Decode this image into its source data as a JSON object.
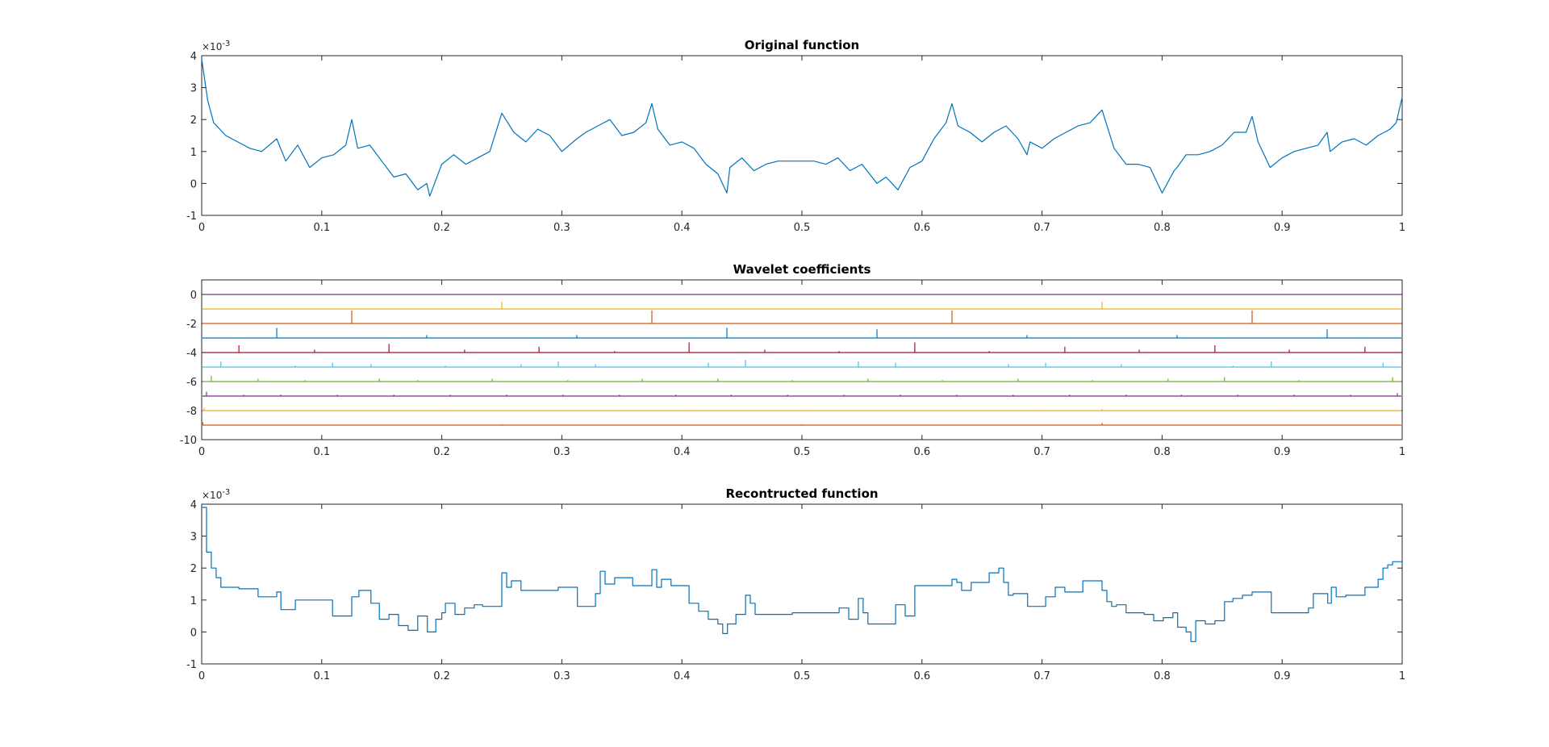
{
  "figure_window": {
    "background": "#ffffff"
  },
  "chart_data": [
    {
      "type": "line",
      "title": "Original function",
      "xlabel": "",
      "ylabel": "",
      "xlim": [
        0,
        1
      ],
      "ylim": [
        -1,
        4
      ],
      "y_multiplier": "×10",
      "y_multiplier_exp": "-3",
      "xticks": [
        "0",
        "0.1",
        "0.2",
        "0.3",
        "0.4",
        "0.5",
        "0.6",
        "0.7",
        "0.8",
        "0.9",
        "1"
      ],
      "yticks": [
        "-1",
        "0",
        "1",
        "2",
        "3",
        "4"
      ],
      "grid": false,
      "color": "#0072bd",
      "series": [
        {
          "x": [
            0,
            0.005,
            0.01,
            0.02,
            0.03,
            0.04,
            0.05,
            0.0625,
            0.07,
            0.08,
            0.09,
            0.1,
            0.11,
            0.12,
            0.125,
            0.13,
            0.14,
            0.15,
            0.16,
            0.17,
            0.18,
            0.1875,
            0.19,
            0.2,
            0.21,
            0.22,
            0.23,
            0.24,
            0.25,
            0.26,
            0.27,
            0.28,
            0.29,
            0.3,
            0.3125,
            0.32,
            0.33,
            0.34,
            0.35,
            0.36,
            0.37,
            0.375,
            0.38,
            0.39,
            0.4,
            0.41,
            0.42,
            0.43,
            0.4375,
            0.44,
            0.45,
            0.46,
            0.47,
            0.48,
            0.49,
            0.5,
            0.51,
            0.52,
            0.53,
            0.54,
            0.55,
            0.5625,
            0.57,
            0.58,
            0.59,
            0.6,
            0.61,
            0.62,
            0.625,
            0.63,
            0.64,
            0.65,
            0.66,
            0.67,
            0.68,
            0.6875,
            0.69,
            0.7,
            0.71,
            0.72,
            0.73,
            0.74,
            0.75,
            0.76,
            0.77,
            0.78,
            0.79,
            0.8,
            0.81,
            0.8125,
            0.82,
            0.83,
            0.84,
            0.85,
            0.86,
            0.87,
            0.875,
            0.88,
            0.89,
            0.9,
            0.91,
            0.92,
            0.93,
            0.9375,
            0.94,
            0.95,
            0.96,
            0.97,
            0.98,
            0.99,
            0.995,
            1
          ],
          "y": [
            3.9,
            2.6,
            1.9,
            1.5,
            1.3,
            1.1,
            1.0,
            1.4,
            0.7,
            1.2,
            0.5,
            0.8,
            0.9,
            1.2,
            2.0,
            1.1,
            1.2,
            0.7,
            0.2,
            0.3,
            -0.2,
            0.0,
            -0.4,
            0.6,
            0.9,
            0.6,
            0.8,
            1.0,
            2.2,
            1.6,
            1.3,
            1.7,
            1.5,
            1.0,
            1.4,
            1.6,
            1.8,
            2.0,
            1.5,
            1.6,
            1.9,
            2.5,
            1.7,
            1.2,
            1.3,
            1.1,
            0.6,
            0.3,
            -0.3,
            0.5,
            0.8,
            0.4,
            0.6,
            0.7,
            0.7,
            0.7,
            0.7,
            0.6,
            0.8,
            0.4,
            0.6,
            0.0,
            0.2,
            -0.2,
            0.5,
            0.7,
            1.4,
            1.9,
            2.5,
            1.8,
            1.6,
            1.3,
            1.6,
            1.8,
            1.4,
            0.9,
            1.3,
            1.1,
            1.4,
            1.6,
            1.8,
            1.9,
            2.3,
            1.1,
            0.6,
            0.6,
            0.5,
            -0.3,
            0.4,
            0.5,
            0.9,
            0.9,
            1.0,
            1.2,
            1.6,
            1.6,
            2.1,
            1.3,
            0.5,
            0.8,
            1.0,
            1.1,
            1.2,
            1.6,
            1.0,
            1.3,
            1.4,
            1.2,
            1.5,
            1.7,
            1.9,
            2.7
          ]
        }
      ]
    },
    {
      "type": "line",
      "title": "Wavelet coefficients",
      "xlabel": "",
      "ylabel": "",
      "xlim": [
        0,
        1
      ],
      "ylim": [
        -10,
        1
      ],
      "xticks": [
        "0",
        "0.1",
        "0.2",
        "0.3",
        "0.4",
        "0.5",
        "0.6",
        "0.7",
        "0.8",
        "0.9",
        "1"
      ],
      "yticks": [
        "-10",
        "-8",
        "-6",
        "-4",
        "-2",
        "0"
      ],
      "grid": false,
      "levels": [
        {
          "baseline": 0,
          "color": "#7e2f8e",
          "spikes": []
        },
        {
          "baseline": -1,
          "color": "#edb120",
          "spikes": [
            {
              "x": 0.25,
              "h": 0.5
            },
            {
              "x": 0.75,
              "h": 0.5
            }
          ]
        },
        {
          "baseline": -2,
          "color": "#d95319",
          "spikes": [
            {
              "x": 0.125,
              "h": 0.9
            },
            {
              "x": 0.375,
              "h": 0.9
            },
            {
              "x": 0.625,
              "h": 0.9
            },
            {
              "x": 0.875,
              "h": 0.9
            }
          ]
        },
        {
          "baseline": -3,
          "color": "#0072bd",
          "spikes": [
            {
              "x": 0.0625,
              "h": 0.7
            },
            {
              "x": 0.1875,
              "h": 0.2
            },
            {
              "x": 0.3125,
              "h": 0.2
            },
            {
              "x": 0.4375,
              "h": 0.7
            },
            {
              "x": 0.5625,
              "h": 0.6
            },
            {
              "x": 0.6875,
              "h": 0.2
            },
            {
              "x": 0.8125,
              "h": 0.2
            },
            {
              "x": 0.9375,
              "h": 0.6
            }
          ]
        },
        {
          "baseline": -4,
          "color": "#a2142f",
          "spikes": [
            {
              "x": 0.031,
              "h": 0.5
            },
            {
              "x": 0.094,
              "h": 0.2
            },
            {
              "x": 0.156,
              "h": 0.6
            },
            {
              "x": 0.219,
              "h": 0.2
            },
            {
              "x": 0.281,
              "h": 0.4
            },
            {
              "x": 0.344,
              "h": 0.1
            },
            {
              "x": 0.406,
              "h": 0.7
            },
            {
              "x": 0.469,
              "h": 0.2
            },
            {
              "x": 0.531,
              "h": 0.1
            },
            {
              "x": 0.594,
              "h": 0.7
            },
            {
              "x": 0.656,
              "h": 0.1
            },
            {
              "x": 0.719,
              "h": 0.4
            },
            {
              "x": 0.781,
              "h": 0.2
            },
            {
              "x": 0.844,
              "h": 0.5
            },
            {
              "x": 0.906,
              "h": 0.2
            },
            {
              "x": 0.969,
              "h": 0.4
            }
          ]
        },
        {
          "baseline": -5,
          "color": "#4dbeee",
          "spikes": [
            {
              "x": 0.016,
              "h": 0.4
            },
            {
              "x": 0.078,
              "h": 0.1
            },
            {
              "x": 0.109,
              "h": 0.3
            },
            {
              "x": 0.141,
              "h": 0.2
            },
            {
              "x": 0.203,
              "h": 0.1
            },
            {
              "x": 0.266,
              "h": 0.2
            },
            {
              "x": 0.297,
              "h": 0.4
            },
            {
              "x": 0.328,
              "h": 0.2
            },
            {
              "x": 0.422,
              "h": 0.3
            },
            {
              "x": 0.453,
              "h": 0.5
            },
            {
              "x": 0.547,
              "h": 0.4
            },
            {
              "x": 0.578,
              "h": 0.3
            },
            {
              "x": 0.672,
              "h": 0.2
            },
            {
              "x": 0.703,
              "h": 0.3
            },
            {
              "x": 0.766,
              "h": 0.2
            },
            {
              "x": 0.859,
              "h": 0.1
            },
            {
              "x": 0.891,
              "h": 0.4
            },
            {
              "x": 0.984,
              "h": 0.3
            }
          ]
        },
        {
          "baseline": -6,
          "color": "#77ac30",
          "spikes": [
            {
              "x": 0.008,
              "h": 0.4
            },
            {
              "x": 0.047,
              "h": 0.2
            },
            {
              "x": 0.086,
              "h": 0.1
            },
            {
              "x": 0.148,
              "h": 0.2
            },
            {
              "x": 0.18,
              "h": 0.1
            },
            {
              "x": 0.242,
              "h": 0.2
            },
            {
              "x": 0.305,
              "h": 0.1
            },
            {
              "x": 0.367,
              "h": 0.2
            },
            {
              "x": 0.43,
              "h": 0.2
            },
            {
              "x": 0.492,
              "h": 0.1
            },
            {
              "x": 0.555,
              "h": 0.2
            },
            {
              "x": 0.617,
              "h": 0.1
            },
            {
              "x": 0.68,
              "h": 0.2
            },
            {
              "x": 0.742,
              "h": 0.1
            },
            {
              "x": 0.805,
              "h": 0.2
            },
            {
              "x": 0.852,
              "h": 0.3
            },
            {
              "x": 0.914,
              "h": 0.1
            },
            {
              "x": 0.992,
              "h": 0.3
            }
          ]
        },
        {
          "baseline": -7,
          "color": "#7e2f8e",
          "spikes": [
            {
              "x": 0.004,
              "h": 0.3
            },
            {
              "x": 0.035,
              "h": 0.1
            },
            {
              "x": 0.066,
              "h": 0.1
            },
            {
              "x": 0.113,
              "h": 0.1
            },
            {
              "x": 0.16,
              "h": 0.1
            },
            {
              "x": 0.207,
              "h": 0.1
            },
            {
              "x": 0.254,
              "h": 0.1
            },
            {
              "x": 0.301,
              "h": 0.1
            },
            {
              "x": 0.348,
              "h": 0.1
            },
            {
              "x": 0.395,
              "h": 0.1
            },
            {
              "x": 0.441,
              "h": 0.1
            },
            {
              "x": 0.488,
              "h": 0.1
            },
            {
              "x": 0.535,
              "h": 0.1
            },
            {
              "x": 0.582,
              "h": 0.1
            },
            {
              "x": 0.629,
              "h": 0.1
            },
            {
              "x": 0.676,
              "h": 0.1
            },
            {
              "x": 0.723,
              "h": 0.1
            },
            {
              "x": 0.77,
              "h": 0.1
            },
            {
              "x": 0.816,
              "h": 0.1
            },
            {
              "x": 0.863,
              "h": 0.1
            },
            {
              "x": 0.91,
              "h": 0.1
            },
            {
              "x": 0.957,
              "h": 0.1
            },
            {
              "x": 0.996,
              "h": 0.2
            }
          ]
        },
        {
          "baseline": -8,
          "color": "#edb120",
          "spikes": [
            {
              "x": 0.002,
              "h": 0.2
            },
            {
              "x": 0.098,
              "h": 0.05
            },
            {
              "x": 0.199,
              "h": 0.05
            },
            {
              "x": 0.301,
              "h": 0.05
            },
            {
              "x": 0.402,
              "h": 0.05
            },
            {
              "x": 0.5,
              "h": 0.05
            },
            {
              "x": 0.602,
              "h": 0.05
            },
            {
              "x": 0.699,
              "h": 0.05
            },
            {
              "x": 0.75,
              "h": 0.1
            },
            {
              "x": 0.801,
              "h": 0.05
            },
            {
              "x": 0.898,
              "h": 0.05
            }
          ]
        },
        {
          "baseline": -9,
          "color": "#d95319",
          "spikes": [
            {
              "x": 0.001,
              "h": 0.2
            },
            {
              "x": 0.25,
              "h": 0.05
            },
            {
              "x": 0.5,
              "h": 0.05
            },
            {
              "x": 0.75,
              "h": 0.15
            }
          ]
        }
      ]
    },
    {
      "type": "line",
      "title": "Recontructed function",
      "xlabel": "",
      "ylabel": "",
      "xlim": [
        0,
        1
      ],
      "ylim": [
        -1,
        4
      ],
      "y_multiplier": "×10",
      "y_multiplier_exp": "-3",
      "xticks": [
        "0",
        "0.1",
        "0.2",
        "0.3",
        "0.4",
        "0.5",
        "0.6",
        "0.7",
        "0.8",
        "0.9",
        "1"
      ],
      "yticks": [
        "-1",
        "0",
        "1",
        "2",
        "3",
        "4"
      ],
      "grid": false,
      "color": "#0072bd",
      "series": [
        {
          "step": true,
          "x": [
            0,
            0.004,
            0.008,
            0.012,
            0.016,
            0.031,
            0.047,
            0.0625,
            0.066,
            0.078,
            0.094,
            0.109,
            0.125,
            0.131,
            0.141,
            0.148,
            0.156,
            0.164,
            0.172,
            0.18,
            0.188,
            0.195,
            0.2,
            0.203,
            0.211,
            0.219,
            0.227,
            0.234,
            0.25,
            0.254,
            0.258,
            0.266,
            0.281,
            0.297,
            0.313,
            0.328,
            0.332,
            0.336,
            0.344,
            0.359,
            0.375,
            0.379,
            0.383,
            0.391,
            0.406,
            0.414,
            0.422,
            0.43,
            0.434,
            0.438,
            0.445,
            0.453,
            0.457,
            0.461,
            0.469,
            0.492,
            0.5,
            0.516,
            0.531,
            0.539,
            0.547,
            0.551,
            0.555,
            0.563,
            0.57,
            0.578,
            0.586,
            0.594,
            0.609,
            0.625,
            0.629,
            0.633,
            0.641,
            0.656,
            0.664,
            0.668,
            0.672,
            0.676,
            0.688,
            0.703,
            0.711,
            0.719,
            0.734,
            0.75,
            0.754,
            0.758,
            0.762,
            0.77,
            0.777,
            0.785,
            0.793,
            0.801,
            0.809,
            0.813,
            0.82,
            0.824,
            0.828,
            0.836,
            0.844,
            0.852,
            0.859,
            0.867,
            0.875,
            0.883,
            0.891,
            0.906,
            0.922,
            0.926,
            0.938,
            0.941,
            0.945,
            0.953,
            0.969,
            0.98,
            0.984,
            0.988,
            0.992,
            1
          ],
          "y": [
            3.9,
            2.5,
            2.0,
            1.7,
            1.4,
            1.35,
            1.1,
            1.25,
            0.7,
            1.0,
            1.0,
            0.5,
            1.1,
            1.3,
            0.9,
            0.4,
            0.55,
            0.2,
            0.05,
            0.5,
            0.0,
            0.4,
            0.6,
            0.9,
            0.55,
            0.75,
            0.85,
            0.8,
            1.85,
            1.4,
            1.6,
            1.3,
            1.3,
            1.4,
            0.8,
            1.2,
            1.9,
            1.5,
            1.7,
            1.45,
            1.95,
            1.4,
            1.65,
            1.45,
            0.9,
            0.65,
            0.4,
            0.25,
            -0.05,
            0.25,
            0.55,
            1.15,
            0.9,
            0.55,
            0.55,
            0.6,
            0.6,
            0.6,
            0.75,
            0.4,
            1.05,
            0.6,
            0.25,
            0.25,
            0.25,
            0.85,
            0.5,
            1.45,
            1.45,
            1.65,
            1.55,
            1.3,
            1.55,
            1.85,
            2.0,
            1.55,
            1.15,
            1.2,
            0.8,
            1.1,
            1.4,
            1.25,
            1.6,
            1.3,
            0.95,
            0.8,
            0.85,
            0.6,
            0.6,
            0.55,
            0.35,
            0.45,
            0.6,
            0.15,
            0.0,
            -0.3,
            0.35,
            0.25,
            0.35,
            0.95,
            1.05,
            1.15,
            1.25,
            1.25,
            0.6,
            0.6,
            0.75,
            1.2,
            0.9,
            1.4,
            1.1,
            1.15,
            1.4,
            1.65,
            2.0,
            2.1,
            2.2,
            2.2
          ]
        }
      ]
    }
  ]
}
